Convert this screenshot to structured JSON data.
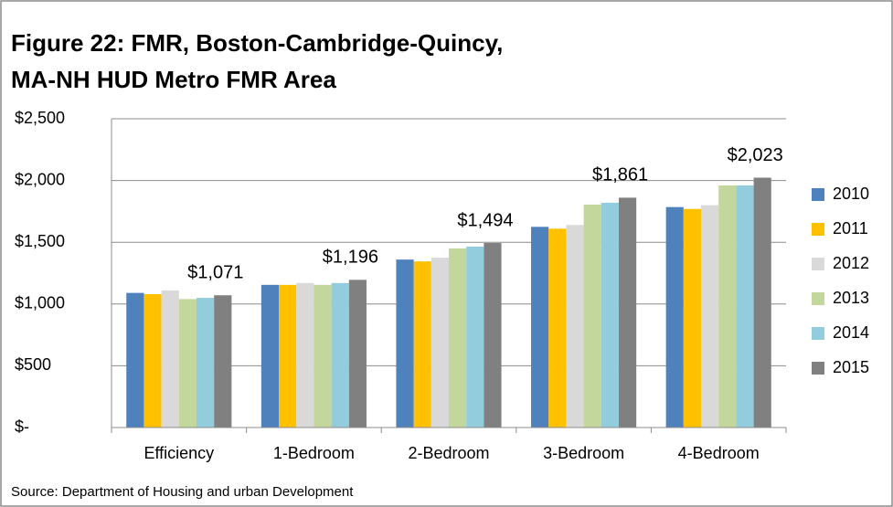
{
  "chart_data": {
    "type": "bar",
    "title": [
      "Figure 22: FMR, Boston-Cambridge-Quincy,",
      "MA-NH HUD Metro FMR Area"
    ],
    "source": "Source: Department of Housing and urban Development",
    "categories": [
      "Efficiency",
      "1-Bedroom",
      "2-Bedroom",
      "3-Bedroom",
      "4-Bedroom"
    ],
    "series": [
      {
        "name": "2010",
        "color": "#4f81bd",
        "values": [
          1090,
          1155,
          1360,
          1625,
          1785
        ]
      },
      {
        "name": "2011",
        "color": "#ffc000",
        "values": [
          1080,
          1155,
          1345,
          1610,
          1770
        ]
      },
      {
        "name": "2012",
        "color": "#d9d9d9",
        "values": [
          1110,
          1170,
          1375,
          1640,
          1800
        ]
      },
      {
        "name": "2013",
        "color": "#c3d69b",
        "values": [
          1040,
          1155,
          1450,
          1805,
          1960
        ]
      },
      {
        "name": "2014",
        "color": "#93cddd",
        "values": [
          1050,
          1170,
          1465,
          1820,
          1960
        ]
      },
      {
        "name": "2015",
        "color": "#808080",
        "values": [
          1071,
          1196,
          1494,
          1861,
          2023
        ],
        "value_labels": [
          "$1,071",
          "$1,196",
          "$1,494",
          "$1,861",
          "$2,023"
        ]
      }
    ],
    "ylim": [
      0,
      2500
    ],
    "yticks": [
      {
        "value": 0,
        "label": "$-"
      },
      {
        "value": 500,
        "label": "$500"
      },
      {
        "value": 1000,
        "label": "$1,000"
      },
      {
        "value": 1500,
        "label": "$1,500"
      },
      {
        "value": 2000,
        "label": "$2,000"
      },
      {
        "value": 2500,
        "label": "$2,500"
      }
    ],
    "grid": true,
    "legend": "right"
  }
}
